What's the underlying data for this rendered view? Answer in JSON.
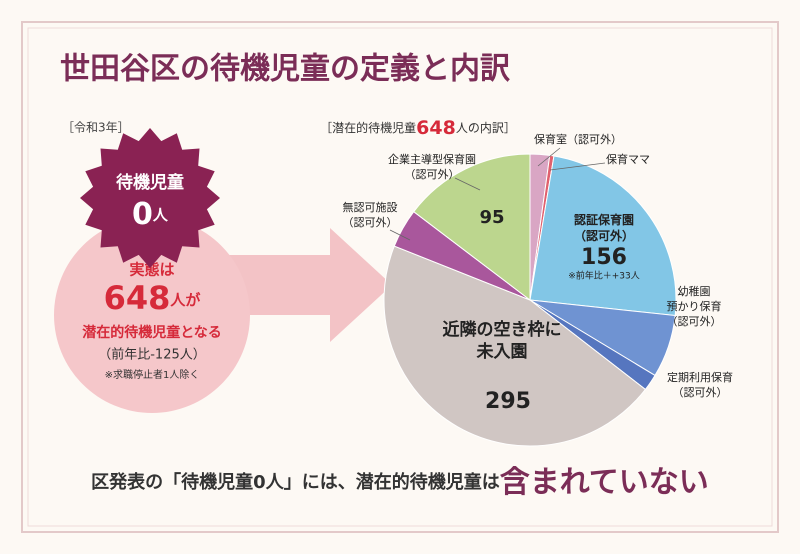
{
  "header": {
    "title": "世田谷区の待機児童の定義と内訳"
  },
  "left": {
    "year": "［令和3年］",
    "badge": {
      "line1": "待機児童",
      "number": "0",
      "unit": "人"
    },
    "circle": {
      "line1": "実態は",
      "number": "648",
      "unit": "人が",
      "line3": "潜在的待機児童となる",
      "line4": "（前年比-125人）",
      "note": "※求職停止者1人除く"
    }
  },
  "chart_data": {
    "type": "pie",
    "title": [
      "［潜在的待機児童",
      "648",
      "人の内訳］"
    ],
    "categories": [
      "保育室（認可外）",
      "保育ママ",
      "認証保育園\n（認可外）",
      "幼稚園\n預かり保育\n（認可外）",
      "定期利用保育\n（認可外）",
      "近隣の空き枠に\n未入園",
      "無認可施設\n（認可外）",
      "企業主導型保育園\n（認可外）"
    ],
    "values": [
      14,
      3,
      156,
      45,
      12,
      295,
      28,
      95
    ],
    "value_labels": [
      null,
      null,
      "156",
      null,
      null,
      "295",
      null,
      "95"
    ],
    "colors": [
      "#d9a6c4",
      "#e0606e",
      "#82c6e6",
      "#6f93d2",
      "#5676bf",
      "#d0c6c3",
      "#a9579c",
      "#bcd68e"
    ],
    "annotation": "※前年比＋+33人"
  },
  "footer": {
    "parts": [
      "区発表の「待機児童0人」には、潜在的待機児童は",
      "含まれていない"
    ]
  }
}
